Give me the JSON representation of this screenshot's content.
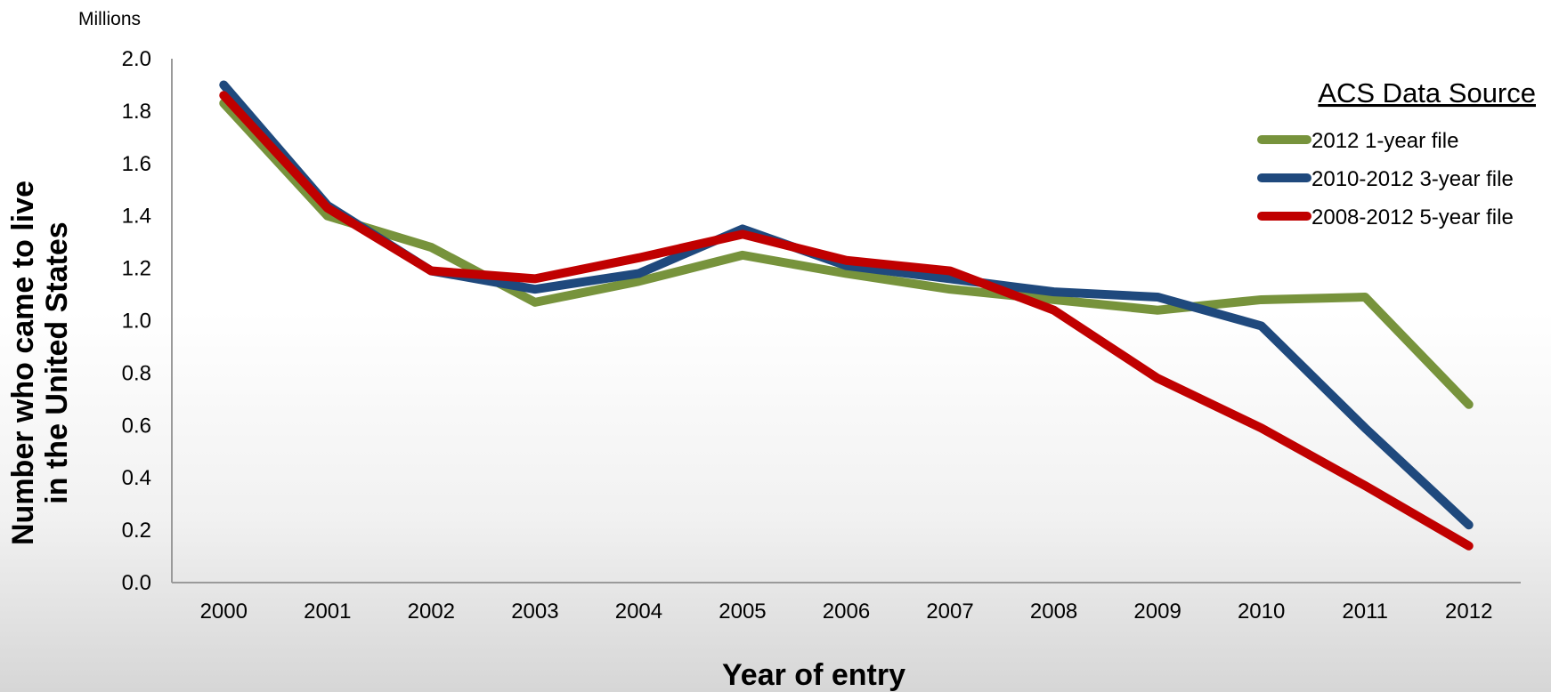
{
  "chart_data": {
    "type": "line",
    "unit_label": "Millions",
    "xlabel": "Year of entry",
    "ylabel_lines": [
      "Number who came to live",
      "in the United States"
    ],
    "ylim": [
      0,
      2.0
    ],
    "y_ticks": [
      "0.0",
      "0.2",
      "0.4",
      "0.6",
      "0.8",
      "1.0",
      "1.2",
      "1.4",
      "1.6",
      "1.8",
      "2.0"
    ],
    "categories": [
      "2000",
      "2001",
      "2002",
      "2003",
      "2004",
      "2005",
      "2006",
      "2007",
      "2008",
      "2009",
      "2010",
      "2011",
      "2012"
    ],
    "legend_title": "ACS Data Source",
    "legend_position": "top-right",
    "series": [
      {
        "name": "2012 1-year file",
        "color": "#77933c",
        "values": [
          1.83,
          1.4,
          1.28,
          1.07,
          1.15,
          1.25,
          1.18,
          1.12,
          1.08,
          1.04,
          1.08,
          1.09,
          0.68
        ]
      },
      {
        "name": "2010-2012 3-year file",
        "color": "#1f497d",
        "values": [
          1.9,
          1.44,
          1.19,
          1.12,
          1.18,
          1.35,
          1.21,
          1.16,
          1.11,
          1.09,
          0.98,
          0.59,
          0.22
        ]
      },
      {
        "name": "2008-2012 5-year file",
        "color": "#c00000",
        "values": [
          1.86,
          1.43,
          1.19,
          1.16,
          1.24,
          1.33,
          1.23,
          1.19,
          1.04,
          0.78,
          0.59,
          0.37,
          0.14
        ]
      }
    ]
  }
}
